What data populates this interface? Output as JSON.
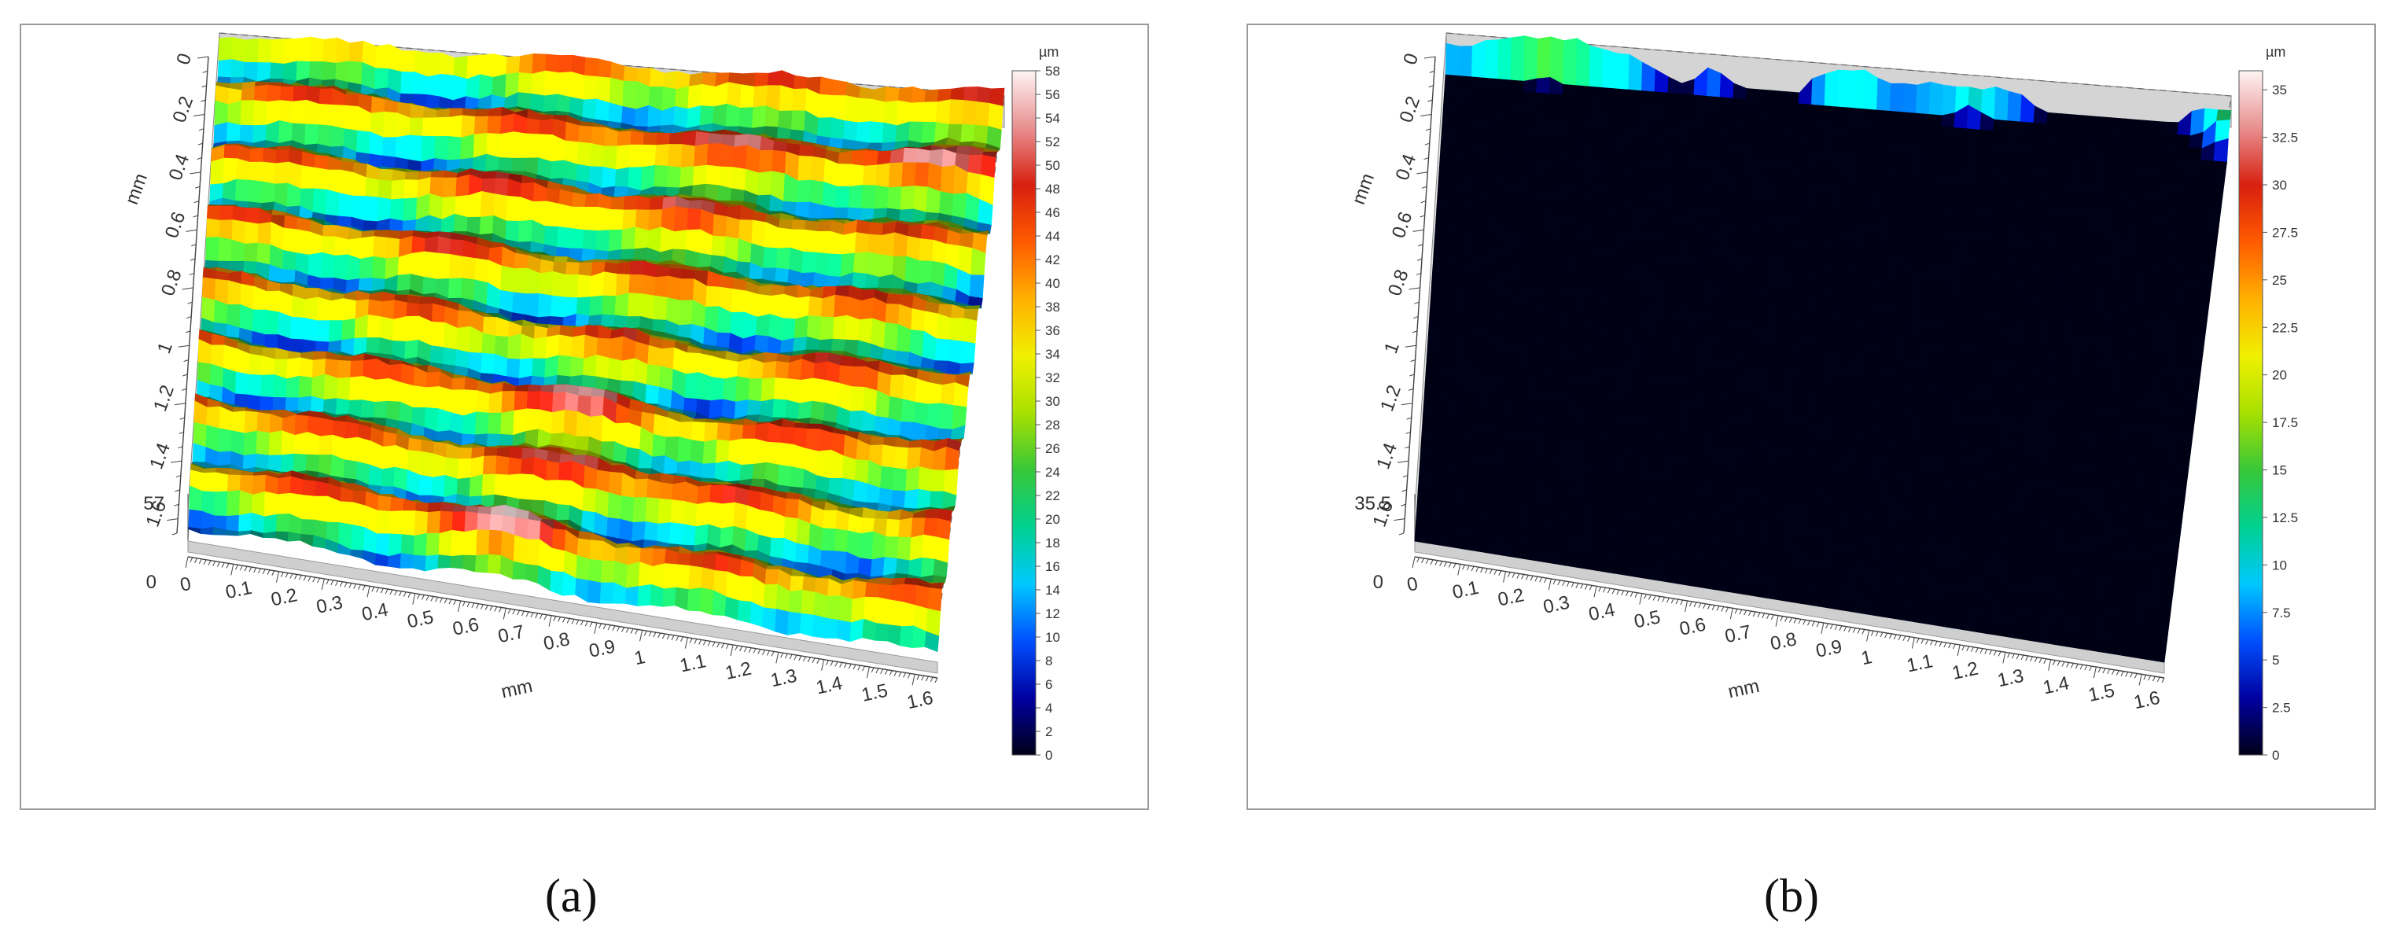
{
  "panels": [
    {
      "caption": "(a)",
      "chart_data": {
        "type": "surface",
        "x_axis": {
          "label": "mm",
          "ticks": [
            "0",
            "0.1",
            "0.2",
            "0.3",
            "0.4",
            "0.5",
            "0.6",
            "0.7",
            "0.8",
            "0.9",
            "1",
            "1.1",
            "1.2",
            "1.3",
            "1.4",
            "1.5",
            "1.6"
          ],
          "range": [
            0,
            1.65
          ]
        },
        "y_axis": {
          "label": "mm",
          "ticks": [
            "1.6",
            "1.4",
            "1.2",
            "1",
            "0.8",
            "0.6",
            "0.4",
            "0.2",
            "0"
          ],
          "range": [
            0,
            1.65
          ]
        },
        "z_axis": {
          "ticks": [
            "0",
            "57"
          ],
          "range": [
            0,
            57
          ]
        },
        "colorbar": {
          "unit": "µm",
          "ticks": [
            "58",
            "56",
            "54",
            "52",
            "50",
            "48",
            "46",
            "44",
            "42",
            "40",
            "38",
            "36",
            "34",
            "32",
            "30",
            "28",
            "26",
            "24",
            "22",
            "20",
            "18",
            "16",
            "14",
            "12",
            "10",
            "8",
            "6",
            "4",
            "2",
            "0"
          ],
          "range": [
            0,
            58
          ]
        },
        "surface_pattern": "parallel ridges"
      }
    },
    {
      "caption": "(b)",
      "chart_data": {
        "type": "surface",
        "x_axis": {
          "label": "mm",
          "ticks": [
            "0",
            "0.1",
            "0.2",
            "0.3",
            "0.4",
            "0.5",
            "0.6",
            "0.7",
            "0.8",
            "0.9",
            "1",
            "1.1",
            "1.2",
            "1.3",
            "1.4",
            "1.5",
            "1.6"
          ],
          "range": [
            0,
            1.65
          ]
        },
        "y_axis": {
          "label": "mm",
          "ticks": [
            "1.6",
            "1.4",
            "1.2",
            "1",
            "0.8",
            "0.6",
            "0.4",
            "0.2",
            "0"
          ],
          "range": [
            0,
            1.65
          ]
        },
        "z_axis": {
          "ticks": [
            "0",
            "35.5"
          ],
          "range": [
            0,
            35.5
          ]
        },
        "colorbar": {
          "unit": "µm",
          "ticks": [
            "35",
            "32.5",
            "30",
            "27.5",
            "25",
            "22.5",
            "20",
            "17.5",
            "15",
            "12.5",
            "10",
            "7.5",
            "5",
            "2.5",
            "0"
          ],
          "range": [
            0,
            36
          ]
        },
        "surface_pattern": "random peaks"
      }
    }
  ],
  "colors": {
    "colormap": [
      "#000018",
      "#0000a0",
      "#0050ff",
      "#00c8ff",
      "#00d090",
      "#38c838",
      "#a8e000",
      "#f0f000",
      "#ffb000",
      "#ff5a00",
      "#d82010",
      "#e89090",
      "#fff4f4"
    ],
    "frame": "#9a9a9a",
    "axis": "#333333"
  }
}
